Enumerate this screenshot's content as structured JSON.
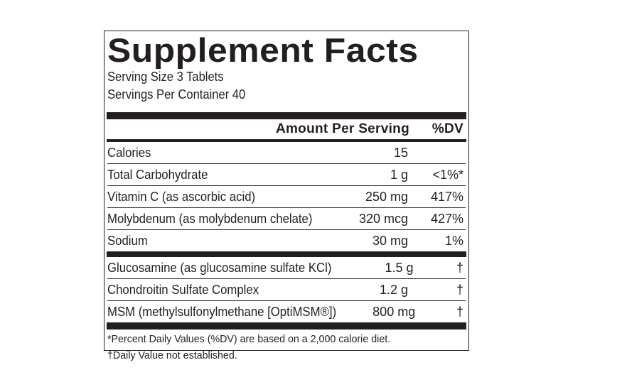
{
  "panel": {
    "title": "Supplement Facts",
    "serving_size": "Serving Size 3 Tablets",
    "servings_per_container": "Servings Per Container 40",
    "header_amount": "Amount Per Serving",
    "header_dv": "%DV"
  },
  "nutrients": [
    {
      "name": "Calories",
      "amount": "15",
      "dv": ""
    },
    {
      "name": "Total Carbohydrate",
      "amount": "1 g",
      "dv": "<1%*"
    },
    {
      "name": "Vitamin C (as ascorbic acid)",
      "amount": "250 mg",
      "dv": "417%"
    },
    {
      "name": "Molybdenum (as molybdenum chelate)",
      "amount": "320 mcg",
      "dv": "427%"
    },
    {
      "name": "Sodium",
      "amount": "30 mg",
      "dv": "1%"
    }
  ],
  "other_ingredients": [
    {
      "name": "Glucosamine (as glucosamine sulfate KCl)",
      "amount": "1.5 g",
      "dv": "†"
    },
    {
      "name": "Chondroitin Sulfate Complex",
      "amount": "1.2 g",
      "dv": "†"
    },
    {
      "name": "MSM (methylsulfonylmethane [OptiMSM®])",
      "amount": "800 mg",
      "dv": "†"
    }
  ],
  "footnotes": {
    "dv_note": "*Percent Daily Values (%DV) are based on a 2,000 calorie diet.",
    "dagger_note": "†Daily Value not established."
  }
}
